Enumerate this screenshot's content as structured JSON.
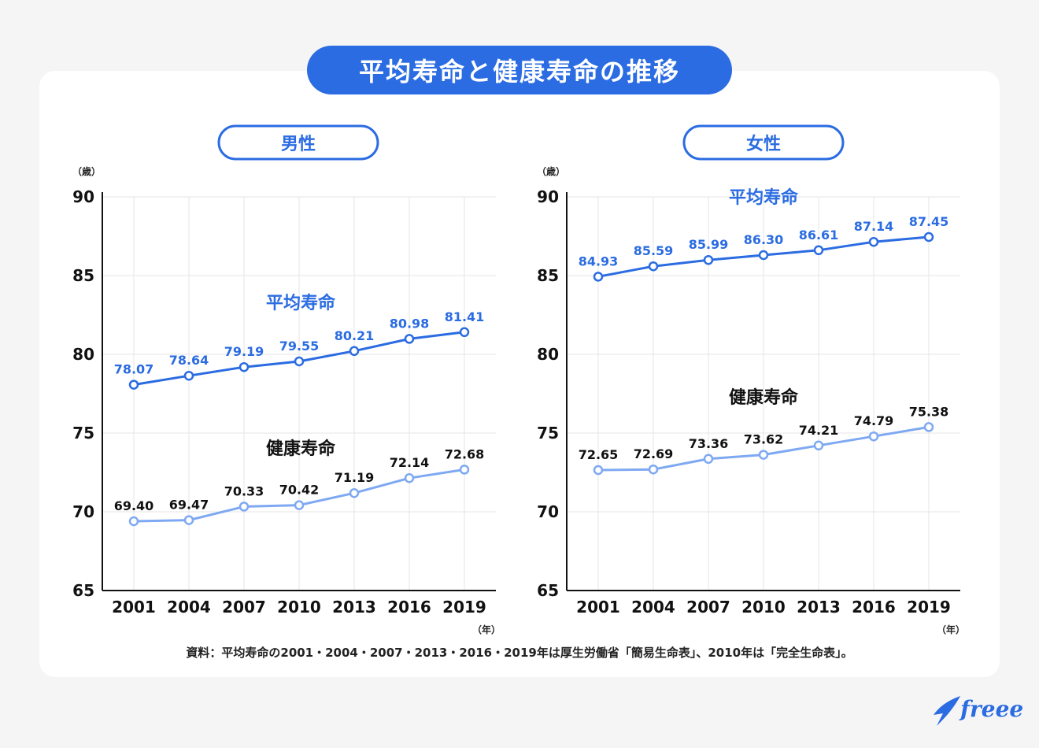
{
  "title": "平均寿命と健康寿命の推移",
  "source": "資料：平均寿命の2001・2004・2007・2013・2016・2019年は厚生労働省「簡易生命表」、2010年は「完全生命表」。",
  "logo_text": "freee",
  "colors": {
    "primary": "#2b6ce2",
    "secondary": "#7ea9f2",
    "grid": "#e6e6e6"
  },
  "chart_data": [
    {
      "type": "line",
      "panel_label": "男性",
      "y_unit": "（歳）",
      "x_unit": "（年）",
      "categories": [
        "2001",
        "2004",
        "2007",
        "2010",
        "2013",
        "2016",
        "2019"
      ],
      "ylim": [
        65,
        90
      ],
      "yticks": [
        65,
        70,
        75,
        80,
        85,
        90
      ],
      "grid": true,
      "series": [
        {
          "name": "平均寿命",
          "values": [
            78.07,
            78.64,
            79.19,
            79.55,
            80.21,
            80.98,
            81.41
          ],
          "labels": [
            "78.07",
            "78.64",
            "79.19",
            "79.55",
            "80.21",
            "80.98",
            "81.41"
          ]
        },
        {
          "name": "健康寿命",
          "values": [
            69.4,
            69.47,
            70.33,
            70.42,
            71.19,
            72.14,
            72.68
          ],
          "labels": [
            "69.40",
            "69.47",
            "70.33",
            "70.42",
            "71.19",
            "72.14",
            "72.68"
          ]
        }
      ]
    },
    {
      "type": "line",
      "panel_label": "女性",
      "y_unit": "（歳）",
      "x_unit": "（年）",
      "categories": [
        "2001",
        "2004",
        "2007",
        "2010",
        "2013",
        "2016",
        "2019"
      ],
      "ylim": [
        65,
        90
      ],
      "yticks": [
        65,
        70,
        75,
        80,
        85,
        90
      ],
      "grid": true,
      "series": [
        {
          "name": "平均寿命",
          "values": [
            84.93,
            85.59,
            85.99,
            86.3,
            86.61,
            87.14,
            87.45
          ],
          "labels": [
            "84.93",
            "85.59",
            "85.99",
            "86.30",
            "86.61",
            "87.14",
            "87.45"
          ]
        },
        {
          "name": "健康寿命",
          "values": [
            72.65,
            72.69,
            73.36,
            73.62,
            74.21,
            74.79,
            75.38
          ],
          "labels": [
            "72.65",
            "72.69",
            "73.36",
            "73.62",
            "74.21",
            "74.79",
            "75.38"
          ]
        }
      ]
    }
  ]
}
